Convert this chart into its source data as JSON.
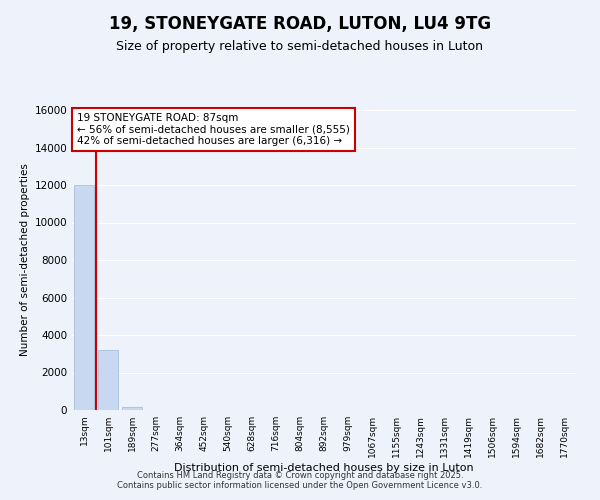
{
  "title": "19, STONEYGATE ROAD, LUTON, LU4 9TG",
  "subtitle": "Size of property relative to semi-detached houses in Luton",
  "xlabel": "Distribution of semi-detached houses by size in Luton",
  "ylabel": "Number of semi-detached properties",
  "footer_line1": "Contains HM Land Registry data © Crown copyright and database right 2025.",
  "footer_line2": "Contains public sector information licensed under the Open Government Licence v3.0.",
  "bar_labels": [
    "13sqm",
    "101sqm",
    "189sqm",
    "277sqm",
    "364sqm",
    "452sqm",
    "540sqm",
    "628sqm",
    "716sqm",
    "804sqm",
    "892sqm",
    "979sqm",
    "1067sqm",
    "1155sqm",
    "1243sqm",
    "1331sqm",
    "1419sqm",
    "1506sqm",
    "1594sqm",
    "1682sqm",
    "1770sqm"
  ],
  "bar_values": [
    12000,
    3200,
    150,
    0,
    0,
    0,
    0,
    0,
    0,
    0,
    0,
    0,
    0,
    0,
    0,
    0,
    0,
    0,
    0,
    0,
    0
  ],
  "bar_color": "#c8d8f0",
  "bar_edge_color": "#9ab8d8",
  "ylim": [
    0,
    16000
  ],
  "yticks": [
    0,
    2000,
    4000,
    6000,
    8000,
    10000,
    12000,
    14000,
    16000
  ],
  "vline_x": 0.5,
  "vline_color": "#cc0000",
  "annotation_text_line1": "19 STONEYGATE ROAD: 87sqm",
  "annotation_text_line2": "← 56% of semi-detached houses are smaller (8,555)",
  "annotation_text_line3": "42% of semi-detached houses are larger (6,316) →",
  "annotation_box_color": "#cc0000",
  "background_color": "#eef2fa",
  "grid_color": "#ffffff",
  "title_fontsize": 12,
  "subtitle_fontsize": 9
}
